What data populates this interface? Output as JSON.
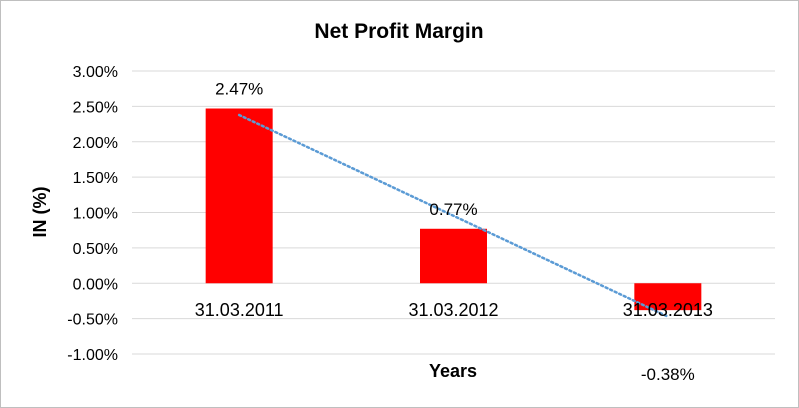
{
  "chart_data": {
    "type": "bar",
    "title": "Net Profit Margin",
    "xlabel": "Years",
    "ylabel": "IN (%)",
    "categories": [
      "31.03.2011",
      "31.03.2012",
      "31.03.2013"
    ],
    "values": [
      2.47,
      0.77,
      -0.38
    ],
    "data_labels": [
      "2.47%",
      "0.77%",
      "-0.38%"
    ],
    "ylim": [
      -1.0,
      3.0
    ],
    "yticks": [
      3.0,
      2.5,
      2.0,
      1.5,
      1.0,
      0.5,
      0.0,
      -0.5,
      -1.0
    ],
    "ytick_labels": [
      "3.00%",
      "2.50%",
      "2.00%",
      "1.50%",
      "1.00%",
      "0.50%",
      "0.00%",
      "-0.50%",
      "-1.00%"
    ],
    "grid": true,
    "trendline": "linear",
    "colors": {
      "bar": "#ff0000",
      "gridline": "#d9d9d9",
      "trendline": "#5b9bd5"
    }
  }
}
